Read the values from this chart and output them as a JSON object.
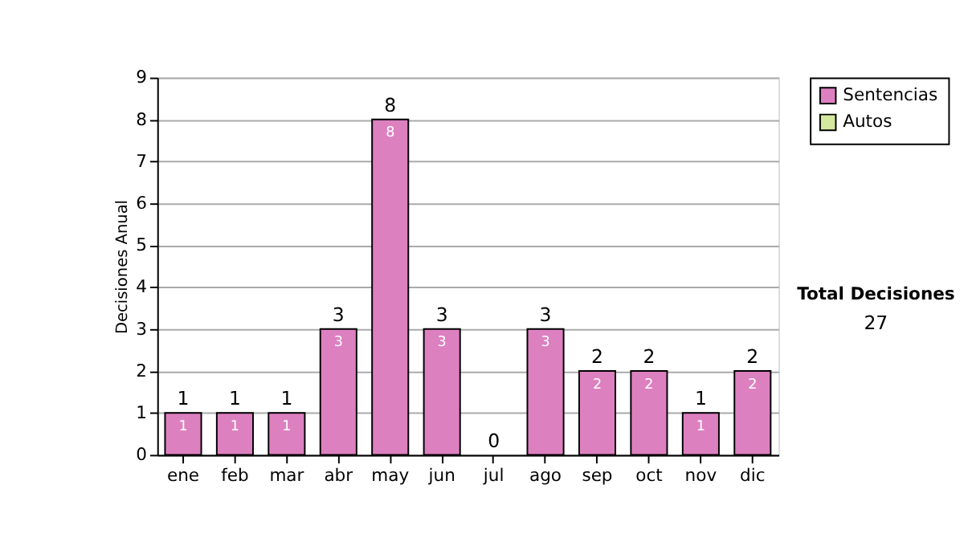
{
  "chart_data": {
    "type": "bar",
    "stacked": true,
    "ylabel": "Decisiones Anual",
    "categories": [
      "ene",
      "feb",
      "mar",
      "abr",
      "may",
      "jun",
      "jul",
      "ago",
      "sep",
      "oct",
      "nov",
      "dic"
    ],
    "series": [
      {
        "name": "Sentencias",
        "color": "#dd80c0",
        "values": [
          1,
          1,
          1,
          3,
          8,
          3,
          0,
          3,
          2,
          2,
          1,
          2
        ],
        "value_labels": [
          "1",
          "1",
          "1",
          "3",
          "8",
          "3",
          null,
          "3",
          "2",
          "2",
          "1",
          "2"
        ]
      },
      {
        "name": "Autos",
        "color": "#d4e8a0",
        "values": [
          0,
          0,
          0,
          0,
          0,
          0,
          0,
          0,
          0,
          0,
          0,
          0
        ]
      }
    ],
    "totals": [
      "1",
      "1",
      "1",
      "3",
      "8",
      "3",
      "0",
      "3",
      "2",
      "2",
      "1",
      "2"
    ],
    "ylim": [
      0,
      9
    ],
    "yticks": [
      0,
      1,
      2,
      3,
      4,
      5,
      6,
      7,
      8,
      9
    ],
    "grid": "y",
    "legend": "right",
    "annotations": [
      "Total Decisiones",
      "27"
    ]
  }
}
